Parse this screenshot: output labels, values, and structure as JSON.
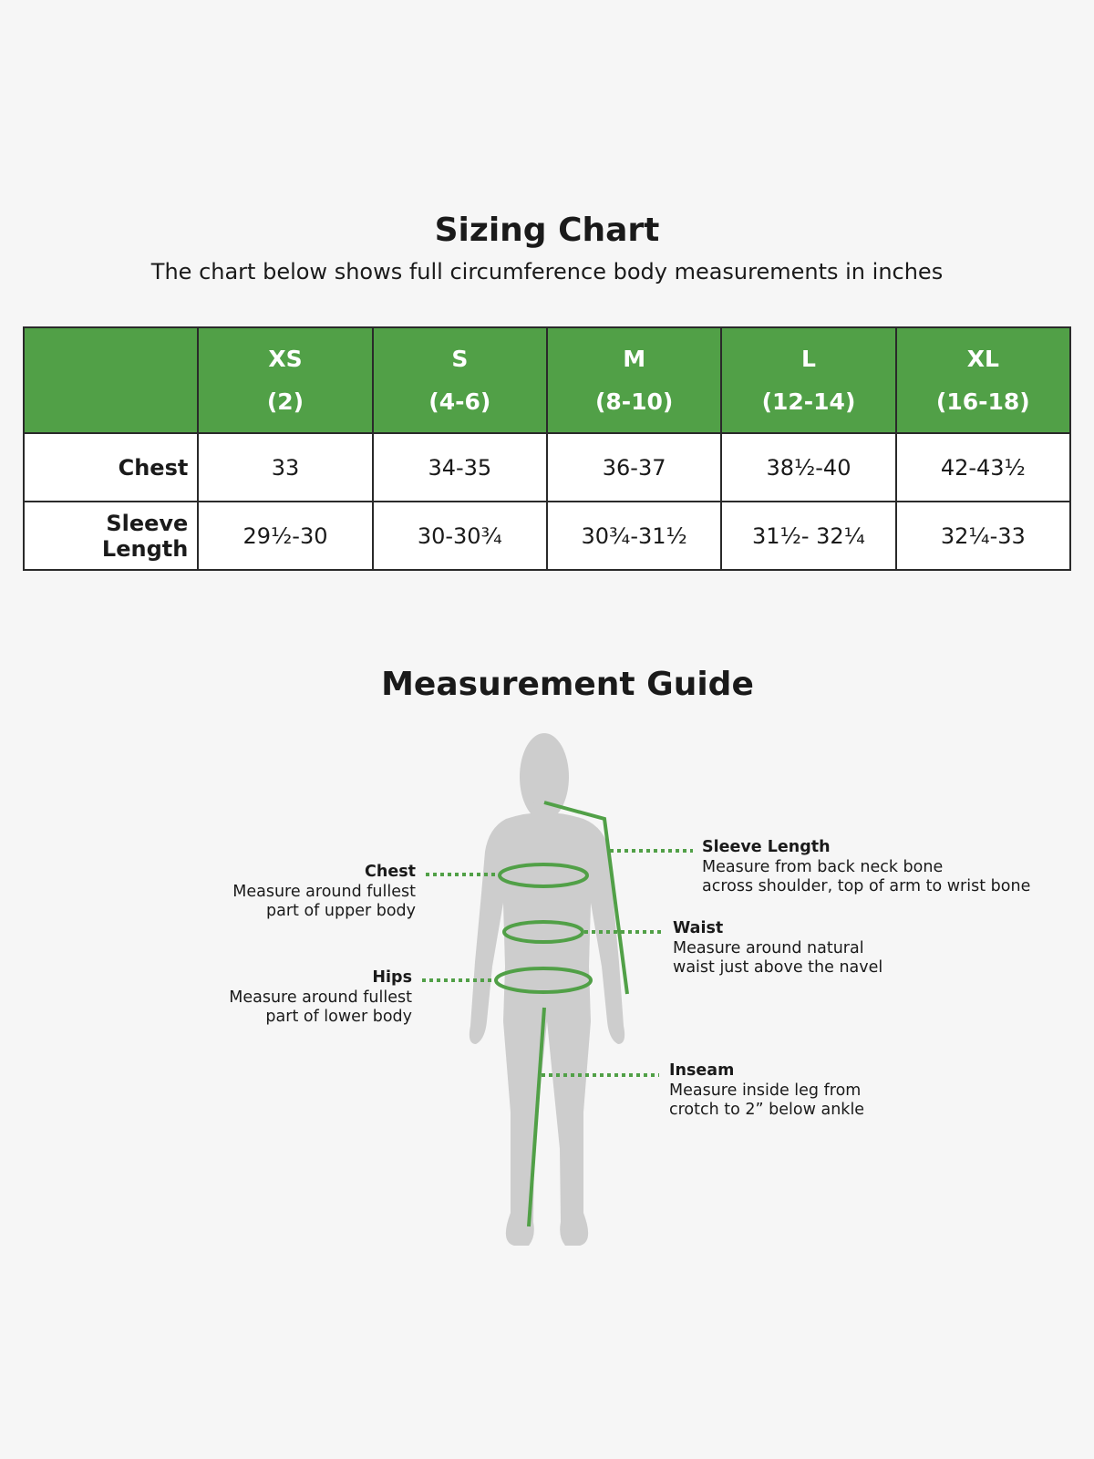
{
  "sizing": {
    "title": "Sizing Chart",
    "subtitle": "The chart below shows full circumference body measurements in inches",
    "header_corner": "",
    "sizes": [
      {
        "label": "XS",
        "range": "(2)"
      },
      {
        "label": "S",
        "range": "(4-6)"
      },
      {
        "label": "M",
        "range": "(8-10)"
      },
      {
        "label": "L",
        "range": "(12-14)"
      },
      {
        "label": "XL",
        "range": "(16-18)"
      }
    ],
    "rows": [
      {
        "label": "Chest",
        "values": [
          "33",
          "34-35",
          "36-37",
          "38½-40",
          "42-43½"
        ]
      },
      {
        "label": "Sleeve Length",
        "values": [
          "29½-30",
          "30-30¾",
          "30¾-31½",
          "31½- 32¼",
          "32¼-33"
        ]
      }
    ],
    "colors": {
      "header_bg": "#51a047",
      "border": "#2a2a2a",
      "accent": "#51a047"
    }
  },
  "guide": {
    "title": "Measurement Guide",
    "chest": {
      "title": "Chest",
      "desc_1": "Measure around fullest",
      "desc_2": "part of upper body"
    },
    "hips": {
      "title": "Hips",
      "desc_1": "Measure around fullest",
      "desc_2": "part of lower body"
    },
    "sleeve": {
      "title": "Sleeve Length",
      "desc_1": "Measure  from back neck bone",
      "desc_2": "across shoulder, top of arm to wrist bone"
    },
    "waist": {
      "title": "Waist",
      "desc_1": "Measure around natural",
      "desc_2": "waist just above the navel"
    },
    "inseam": {
      "title": "Inseam",
      "desc_1": "Measure inside leg from",
      "desc_2": "crotch to 2” below ankle"
    },
    "figure_icon": "human-body-silhouette-icon"
  }
}
